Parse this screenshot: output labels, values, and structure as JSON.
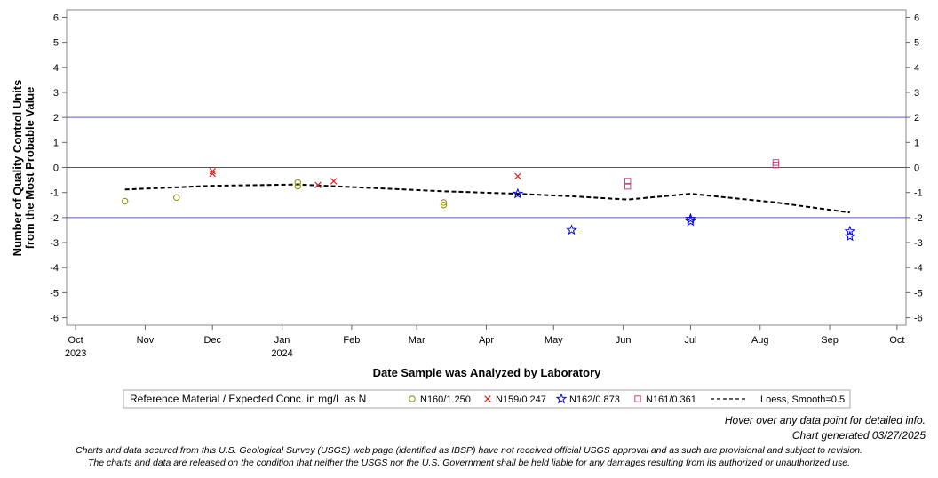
{
  "chart_data": {
    "type": "scatter",
    "xlabel": "Date Sample was Analyzed by Laboratory",
    "ylabel_lines": [
      "Number of Quality Control Units",
      "from the Most Probable Value"
    ],
    "ylim": [
      -6.3,
      6.3
    ],
    "y_ticks": [
      6,
      5,
      4,
      3,
      2,
      1,
      0,
      -1,
      -2,
      -3,
      -4,
      -5,
      -6
    ],
    "y_tick_labels": [
      "6",
      "5",
      "4",
      "3",
      "2",
      "1",
      "0",
      "-1",
      "-2",
      "-3",
      "-4",
      "-5",
      "-6"
    ],
    "xlim": [
      "2023-09-27",
      "2024-10-05"
    ],
    "x_ticks": [
      {
        "date": "2023-10-01",
        "label": "Oct",
        "sublabel": "2023"
      },
      {
        "date": "2023-11-01",
        "label": "Nov",
        "sublabel": ""
      },
      {
        "date": "2023-12-01",
        "label": "Dec",
        "sublabel": ""
      },
      {
        "date": "2024-01-01",
        "label": "Jan",
        "sublabel": "2024"
      },
      {
        "date": "2024-02-01",
        "label": "Feb",
        "sublabel": ""
      },
      {
        "date": "2024-03-01",
        "label": "Mar",
        "sublabel": ""
      },
      {
        "date": "2024-04-01",
        "label": "Apr",
        "sublabel": ""
      },
      {
        "date": "2024-05-01",
        "label": "May",
        "sublabel": ""
      },
      {
        "date": "2024-06-01",
        "label": "Jun",
        "sublabel": ""
      },
      {
        "date": "2024-07-01",
        "label": "Jul",
        "sublabel": ""
      },
      {
        "date": "2024-08-01",
        "label": "Aug",
        "sublabel": ""
      },
      {
        "date": "2024-09-01",
        "label": "Sep",
        "sublabel": ""
      },
      {
        "date": "2024-10-01",
        "label": "Oct",
        "sublabel": ""
      }
    ],
    "reference_lines": [
      {
        "y": 2,
        "color": "#5a5acd"
      },
      {
        "y": -2,
        "color": "#5a5acd"
      },
      {
        "y": 0,
        "color": "#555555"
      }
    ],
    "grid": false,
    "legend_position": "bottom",
    "legend_title": "Reference Material / Expected Conc. in mg/L as N",
    "series": [
      {
        "name": "N160/1.250",
        "marker": "circle",
        "color": "#8a8a00",
        "points": [
          {
            "x": "2023-10-23",
            "y": -1.35
          },
          {
            "x": "2023-11-15",
            "y": -1.2
          },
          {
            "x": "2024-01-08",
            "y": -0.6
          },
          {
            "x": "2024-01-08",
            "y": -0.75
          },
          {
            "x": "2024-03-13",
            "y": -1.4
          },
          {
            "x": "2024-03-13",
            "y": -1.5
          }
        ]
      },
      {
        "name": "N159/0.247",
        "marker": "x",
        "color": "#e02020",
        "points": [
          {
            "x": "2023-12-01",
            "y": -0.15
          },
          {
            "x": "2023-12-01",
            "y": -0.25
          },
          {
            "x": "2024-01-17",
            "y": -0.7
          },
          {
            "x": "2024-01-24",
            "y": -0.55
          },
          {
            "x": "2024-04-15",
            "y": -0.35
          }
        ]
      },
      {
        "name": "N162/0.873",
        "marker": "star",
        "color": "#0000e0",
        "points": [
          {
            "x": "2024-04-15",
            "y": -1.05
          },
          {
            "x": "2024-05-09",
            "y": -2.5
          },
          {
            "x": "2024-07-01",
            "y": -2.05
          },
          {
            "x": "2024-07-01",
            "y": -2.15
          },
          {
            "x": "2024-09-10",
            "y": -2.55
          },
          {
            "x": "2024-09-10",
            "y": -2.75
          }
        ]
      },
      {
        "name": "N161/0.361",
        "marker": "square",
        "color": "#d04080",
        "points": [
          {
            "x": "2024-06-03",
            "y": -0.55
          },
          {
            "x": "2024-06-03",
            "y": -0.75
          },
          {
            "x": "2024-08-08",
            "y": 0.1
          },
          {
            "x": "2024-08-08",
            "y": 0.2
          }
        ]
      },
      {
        "name": "Loess, Smooth=0.5",
        "marker": "dashed-line",
        "color": "#000000",
        "points": [
          {
            "x": "2023-10-23",
            "y": -0.88
          },
          {
            "x": "2023-12-01",
            "y": -0.73
          },
          {
            "x": "2024-01-08",
            "y": -0.68
          },
          {
            "x": "2024-02-10",
            "y": -0.82
          },
          {
            "x": "2024-03-13",
            "y": -0.95
          },
          {
            "x": "2024-04-15",
            "y": -1.05
          },
          {
            "x": "2024-05-09",
            "y": -1.15
          },
          {
            "x": "2024-06-03",
            "y": -1.28
          },
          {
            "x": "2024-07-01",
            "y": -1.05
          },
          {
            "x": "2024-08-08",
            "y": -1.4
          },
          {
            "x": "2024-09-10",
            "y": -1.8
          }
        ]
      }
    ]
  },
  "notes": {
    "hover": "Hover over any data point for detailed info.",
    "generated": "Chart generated 03/27/2025"
  },
  "disclaimer": {
    "line1": "Charts and data secured from this U.S. Geological Survey (USGS) web page (identified as IBSP) have not received official USGS approval and as such are provisional and subject to revision.",
    "line2": "The charts and data are released on the condition that neither the USGS nor the U.S. Government shall be held liable for any damages resulting from its authorized or unauthorized use."
  }
}
